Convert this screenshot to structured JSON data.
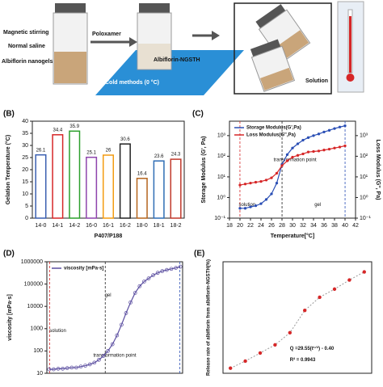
{
  "schematic": {
    "labels": [
      "Magnetic stirring",
      "Normal saline",
      "Albiflorin nanogels",
      "Poloxamer",
      "Albiflorin-NGSTH",
      "Cold methods (0 °C)",
      "Solution"
    ]
  },
  "chart_data": [
    {
      "type": "bar",
      "panel": "(B)",
      "ylabel": "Gelation Temperature (°C)",
      "xlabel": "P407/P188",
      "categories": [
        "14-0",
        "14-1",
        "14-2",
        "16-0",
        "16-1",
        "16-2",
        "18-0",
        "18-1",
        "18-2"
      ],
      "values": [
        26.1,
        34.4,
        35.9,
        25.1,
        26.0,
        30.6,
        16.4,
        23.6,
        24.3
      ],
      "colors": [
        "#3a5fb0",
        "#d62728",
        "#2ca02c",
        "#8e44ad",
        "#f39c12",
        "#222222",
        "#b5651d",
        "#2f6db5",
        "#c0392b"
      ],
      "ylim": [
        0,
        40
      ],
      "yticks": [
        0,
        5,
        10,
        15,
        20,
        25,
        30,
        35,
        40
      ]
    },
    {
      "type": "line",
      "panel": "(C)",
      "ylabel": "Storage Modulus (G', Pa)",
      "y2label": "Loss Modulus (G'', Pa)",
      "xlabel": "Temperature[°C]",
      "annotations": [
        "solution",
        "gel",
        "transformation point"
      ],
      "x": [
        20,
        21,
        22,
        23,
        24,
        25,
        26,
        27,
        28,
        29,
        30,
        31,
        32,
        33,
        34,
        35,
        36,
        37,
        38,
        39,
        40
      ],
      "series": [
        {
          "name": "Storage Modulus(G',Pa)",
          "color": "#2b4fb5",
          "values": [
            0.3,
            0.3,
            0.35,
            0.4,
            0.5,
            0.8,
            1.5,
            5,
            40,
            120,
            250,
            400,
            600,
            800,
            1000,
            1200,
            1500,
            1800,
            2200,
            2600,
            3000
          ]
        },
        {
          "name": "Loss Modulus(G'',Pa)",
          "color": "#d62728",
          "axis": "y2",
          "values": [
            4,
            4.5,
            5,
            5.5,
            6,
            7,
            9,
            15,
            35,
            60,
            90,
            110,
            130,
            160,
            170,
            180,
            200,
            220,
            250,
            280,
            320
          ]
        }
      ],
      "xlim": [
        18,
        42
      ],
      "xticks": [
        18,
        20,
        22,
        24,
        26,
        28,
        30,
        32,
        34,
        36,
        38,
        40,
        42
      ],
      "yscale": "log",
      "ylim": [
        0.1,
        5000
      ],
      "yticks": [
        {
          "value": 0.1,
          "label": "10⁻¹"
        },
        {
          "value": 1,
          "label": "10⁰"
        },
        {
          "value": 10,
          "label": "10¹"
        },
        {
          "value": 100,
          "label": "10²"
        },
        {
          "value": 1000,
          "label": "10³"
        }
      ],
      "y2scale": "log",
      "y2lim": [
        0.1,
        5000
      ],
      "y2ticks": [
        {
          "value": 0.1,
          "label": "10⁻¹"
        },
        {
          "value": 1,
          "label": "10⁰"
        },
        {
          "value": 10,
          "label": "10¹"
        },
        {
          "value": 100,
          "label": "10²"
        },
        {
          "value": 1000,
          "label": "10³"
        }
      ]
    },
    {
      "type": "line",
      "panel": "(D)",
      "ylabel": "viscosity [mPa·s]",
      "annotations": [
        "solution",
        "transformation point",
        "gel"
      ],
      "series": [
        {
          "name": "viscosity [mPa·s]",
          "color": "#5b4ea0",
          "values": [
            15,
            15,
            16,
            16,
            17,
            18,
            18,
            20,
            22,
            25,
            30,
            40,
            60,
            100,
            200,
            500,
            1500,
            5000,
            15000,
            40000,
            80000,
            130000,
            180000,
            250000,
            320000,
            380000,
            430000,
            480000,
            530000,
            600000
          ]
        }
      ],
      "yscale": "log",
      "ylim": [
        10,
        1000000
      ],
      "yticks": [
        10,
        100,
        1000,
        10000,
        100000,
        1000000
      ]
    },
    {
      "type": "scatter",
      "panel": "(E)",
      "ylabel": "Release rate of albiflorin from albiflorin-NGSTH(%)",
      "annotations": [
        "Q =29.55(t¹ᐟ²) - 0.40",
        "R² = 0.9943"
      ],
      "values": [
        5,
        12,
        20,
        28,
        40,
        62,
        75,
        83,
        92,
        100
      ],
      "color": "#d62728",
      "ylim": [
        0,
        110
      ]
    }
  ]
}
